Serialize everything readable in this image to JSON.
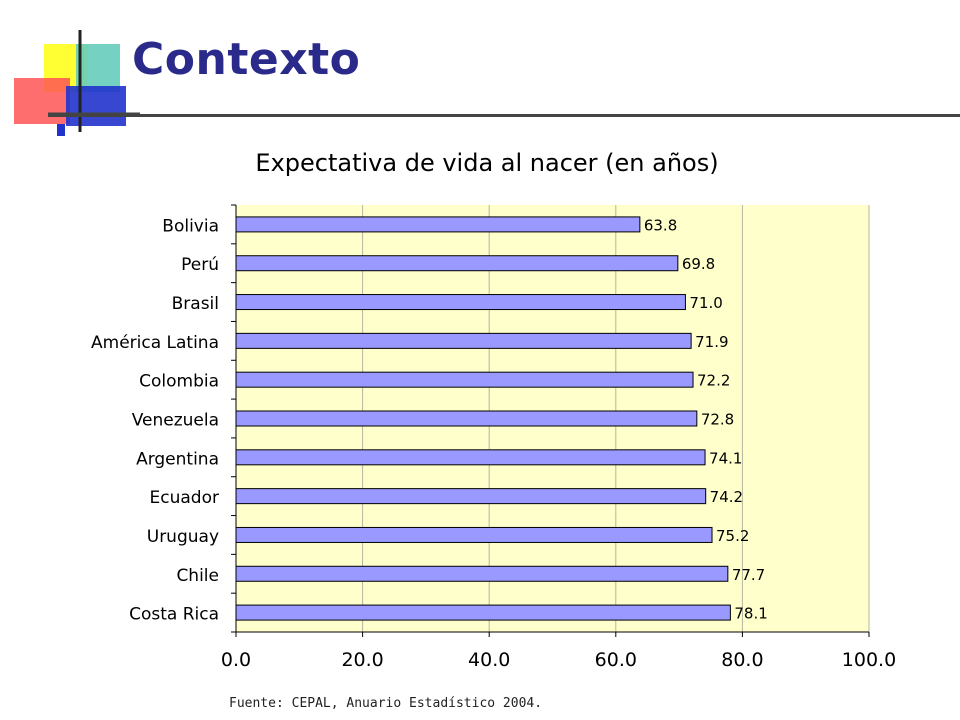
{
  "slide": {
    "title": "Contexto",
    "source": "Fuente: CEPAL, Anuario Estadístico 2004."
  },
  "colors": {
    "title": "#2a2a8a",
    "bar_fill": "#9999ff",
    "plot_background": "#ffffcc",
    "logo_yellow": "#ffff33",
    "logo_teal": "#66ccbb",
    "logo_red": "#ff5555",
    "logo_blue": "#2233cc"
  },
  "chart_data": {
    "type": "bar",
    "orientation": "horizontal",
    "title": "Expectativa de vida al nacer (en años)",
    "categories": [
      "Bolivia",
      "Perú",
      "Brasil",
      "América Latina",
      "Colombia",
      "Venezuela",
      "Argentina",
      "Ecuador",
      "Uruguay",
      "Chile",
      "Costa Rica"
    ],
    "values": [
      63.8,
      69.8,
      71.0,
      71.9,
      72.2,
      72.8,
      74.1,
      74.2,
      75.2,
      77.7,
      78.1
    ],
    "value_labels": [
      "63.8",
      "69.8",
      "71.0",
      "71.9",
      "72.2",
      "72.8",
      "74.1",
      "74.2",
      "75.2",
      "77.7",
      "78.1"
    ],
    "xlim": [
      0,
      100
    ],
    "x_ticks": [
      0,
      20,
      40,
      60,
      80,
      100
    ],
    "x_tick_labels": [
      "0.0",
      "20.0",
      "40.0",
      "60.0",
      "80.0",
      "100.0"
    ],
    "xlabel": "",
    "ylabel": "",
    "grid": true,
    "legend": false
  }
}
